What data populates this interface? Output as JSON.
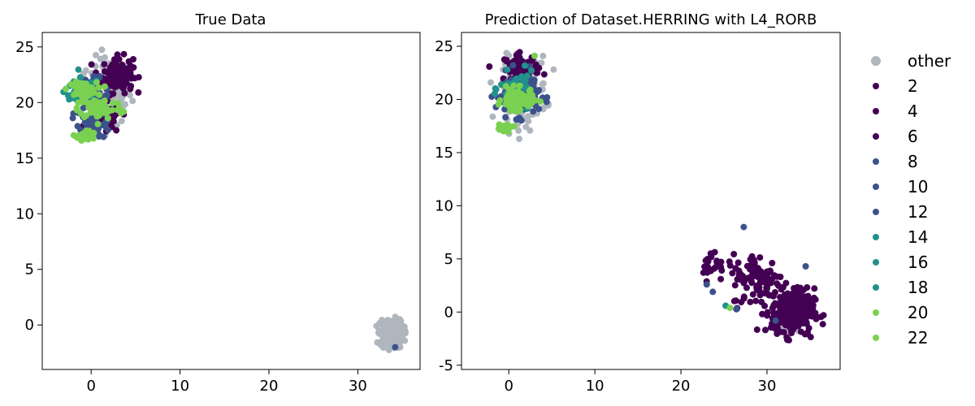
{
  "chart_data": [
    {
      "type": "scatter",
      "title": "True Data",
      "xlabel": "",
      "ylabel": "",
      "xlim": [
        -5.5,
        37
      ],
      "ylim": [
        -4,
        26.3
      ],
      "xticks": [
        0,
        10,
        20,
        30
      ],
      "yticks": [
        0,
        5,
        10,
        15,
        20,
        25
      ],
      "grid": false,
      "clusters": [
        {
          "color": "#b0b6be",
          "center": [
            2,
            21
          ],
          "spread": [
            2.5,
            3
          ],
          "count": 140
        },
        {
          "color": "#440154",
          "center": [
            3,
            22.5
          ],
          "spread": [
            1.7,
            1.6
          ],
          "count": 120
        },
        {
          "color": "#3b528b",
          "center": [
            0,
            20.5
          ],
          "spread": [
            2,
            1.6
          ],
          "count": 70
        },
        {
          "color": "#21918c",
          "center": [
            -1,
            21
          ],
          "spread": [
            2,
            1.2
          ],
          "count": 60
        },
        {
          "color": "#440154",
          "center": [
            1.5,
            18.5
          ],
          "spread": [
            1.8,
            1.3
          ],
          "count": 70
        },
        {
          "color": "#3b528b",
          "center": [
            0.5,
            18
          ],
          "spread": [
            1.8,
            1.2
          ],
          "count": 50
        },
        {
          "color": "#7ad151",
          "center": [
            -1,
            21.2
          ],
          "spread": [
            1.6,
            0.6
          ],
          "count": 80
        },
        {
          "color": "#7ad151",
          "center": [
            1,
            19.5
          ],
          "spread": [
            2.5,
            1
          ],
          "count": 70
        },
        {
          "color": "#7ad151",
          "center": [
            -0.5,
            17
          ],
          "spread": [
            1,
            0.5
          ],
          "count": 40
        },
        {
          "color": "#b0b6be",
          "center": [
            33.8,
            -0.8
          ],
          "spread": [
            1.3,
            1.3
          ],
          "count": 220
        }
      ],
      "points": [
        {
          "x": 34.2,
          "y": -2,
          "color": "#3b528b"
        }
      ]
    },
    {
      "type": "scatter",
      "title": "Prediction of Dataset.HERRING with L4_RORB",
      "xlabel": "",
      "ylabel": "",
      "xlim": [
        -5.5,
        38.5
      ],
      "ylim": [
        -5.4,
        26.3
      ],
      "xticks": [
        0,
        10,
        20,
        30
      ],
      "yticks": [
        -5,
        0,
        5,
        10,
        15,
        20,
        25
      ],
      "grid": false,
      "clusters": [
        {
          "color": "#b0b6be",
          "center": [
            1.8,
            21
          ],
          "spread": [
            2.6,
            3
          ],
          "count": 150
        },
        {
          "color": "#440154",
          "center": [
            1.5,
            23
          ],
          "spread": [
            2,
            1.2
          ],
          "count": 70
        },
        {
          "color": "#3b528b",
          "center": [
            1,
            20.5
          ],
          "spread": [
            2.5,
            2
          ],
          "count": 120
        },
        {
          "color": "#21918c",
          "center": [
            1,
            21
          ],
          "spread": [
            2,
            1.5
          ],
          "count": 40
        },
        {
          "color": "#7ad151",
          "center": [
            1,
            20
          ],
          "spread": [
            1.8,
            1
          ],
          "count": 90
        },
        {
          "color": "#7ad151",
          "center": [
            -0.5,
            17.3
          ],
          "spread": [
            1,
            0.4
          ],
          "count": 25
        },
        {
          "color": "#b0b6be",
          "center": [
            32.5,
            -0.5
          ],
          "spread": [
            1.2,
            1.4
          ],
          "count": 60
        },
        {
          "color": "#440154",
          "center": [
            33,
            0
          ],
          "spread": [
            2.5,
            2.2
          ],
          "count": 260
        },
        {
          "color": "#440154",
          "center": [
            29,
            3
          ],
          "spread": [
            3,
            2.5
          ],
          "count": 100
        },
        {
          "color": "#440154",
          "center": [
            24,
            4.5
          ],
          "spread": [
            2,
            1.5
          ],
          "count": 25
        }
      ],
      "points": [
        {
          "x": 23,
          "y": 2.6,
          "color": "#3b528b"
        },
        {
          "x": 23.7,
          "y": 1.9,
          "color": "#3b528b"
        },
        {
          "x": 25.2,
          "y": 0.6,
          "color": "#21918c"
        },
        {
          "x": 25.7,
          "y": 0.4,
          "color": "#7ad151"
        },
        {
          "x": 26.5,
          "y": 0.3,
          "color": "#3b528b"
        },
        {
          "x": 27.3,
          "y": 8,
          "color": "#3b528b"
        },
        {
          "x": 31,
          "y": -0.8,
          "color": "#3b528b"
        },
        {
          "x": 34.5,
          "y": 4.3,
          "color": "#3b528b"
        },
        {
          "x": 3,
          "y": 24.1,
          "color": "#7ad151"
        }
      ]
    }
  ],
  "legend": {
    "items": [
      {
        "label": "other",
        "color": "#b0b6be"
      },
      {
        "label": "2",
        "color": "#440154"
      },
      {
        "label": "4",
        "color": "#440154"
      },
      {
        "label": "6",
        "color": "#440154"
      },
      {
        "label": "8",
        "color": "#3b528b"
      },
      {
        "label": "10",
        "color": "#3b528b"
      },
      {
        "label": "12",
        "color": "#3b528b"
      },
      {
        "label": "14",
        "color": "#21918c"
      },
      {
        "label": "16",
        "color": "#21918c"
      },
      {
        "label": "18",
        "color": "#21918c"
      },
      {
        "label": "20",
        "color": "#7ad151"
      },
      {
        "label": "22",
        "color": "#7ad151"
      }
    ]
  }
}
